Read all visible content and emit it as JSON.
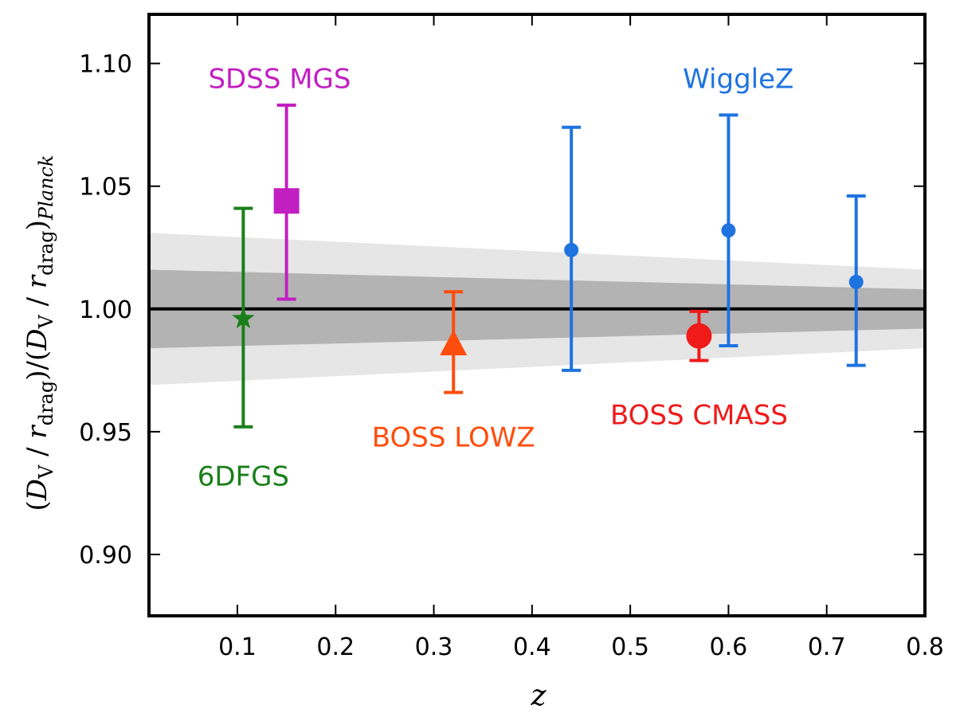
{
  "chart_data": {
    "type": "scatter",
    "xlabel": "z",
    "ylabel": {
      "open": "(",
      "D": "D",
      "V": "V",
      "slash": " / ",
      "r": "r",
      "drag": "drag",
      "mid": ")/(",
      "close": ")",
      "planck": "Planck"
    },
    "xlim": [
      0.01,
      0.8
    ],
    "ylim": [
      0.875,
      1.12
    ],
    "xticks": [
      0.1,
      0.2,
      0.3,
      0.4,
      0.5,
      0.6,
      0.7,
      0.8
    ],
    "xtick_labels": [
      "0.1",
      "0.2",
      "0.3",
      "0.4",
      "0.5",
      "0.6",
      "0.7",
      "0.8"
    ],
    "yticks": [
      0.9,
      0.95,
      1.0,
      1.05,
      1.1
    ],
    "ytick_labels": [
      "0.90",
      "0.95",
      "1.00",
      "1.05",
      "1.10"
    ],
    "reference_line": 1.0,
    "bands": {
      "outer": {
        "z": [
          0.01,
          0.8
        ],
        "lower": [
          0.969,
          0.984
        ],
        "upper": [
          1.031,
          1.016
        ]
      },
      "inner": {
        "z": [
          0.01,
          0.8
        ],
        "lower": [
          0.984,
          0.992
        ],
        "upper": [
          1.016,
          1.008
        ]
      }
    },
    "series": [
      {
        "name": "6DFGS",
        "color": "#1a7f1a",
        "marker": "star",
        "points": [
          {
            "x": 0.106,
            "y": 0.996,
            "yerr_low": 0.044,
            "yerr_high": 0.045
          }
        ]
      },
      {
        "name": "SDSS MGS",
        "color": "#c21fc2",
        "marker": "square",
        "points": [
          {
            "x": 0.15,
            "y": 1.044,
            "yerr_low": 0.04,
            "yerr_high": 0.039
          }
        ]
      },
      {
        "name": "BOSS LOWZ",
        "color": "#ff4d0d",
        "marker": "triangle",
        "points": [
          {
            "x": 0.32,
            "y": 0.985,
            "yerr_low": 0.019,
            "yerr_high": 0.022
          }
        ]
      },
      {
        "name": "BOSS CMASS",
        "color": "#f01a1a",
        "marker": "circle-large",
        "points": [
          {
            "x": 0.57,
            "y": 0.989,
            "yerr_low": 0.01,
            "yerr_high": 0.01
          }
        ]
      },
      {
        "name": "WiggleZ",
        "color": "#1f73e0",
        "marker": "circle",
        "points": [
          {
            "x": 0.44,
            "y": 1.024,
            "yerr_low": 0.049,
            "yerr_high": 0.05
          },
          {
            "x": 0.6,
            "y": 1.032,
            "yerr_low": 0.047,
            "yerr_high": 0.047
          },
          {
            "x": 0.73,
            "y": 1.011,
            "yerr_low": 0.034,
            "yerr_high": 0.035
          }
        ]
      }
    ],
    "annotations": [
      {
        "text": "SDSS MGS",
        "series": "SDSS MGS",
        "x": 0.143,
        "y": 1.09
      },
      {
        "text": "WiggleZ",
        "series": "WiggleZ",
        "x": 0.61,
        "y": 1.09
      },
      {
        "text": "BOSS LOWZ",
        "series": "BOSS LOWZ",
        "x": 0.32,
        "y": 0.944
      },
      {
        "text": "BOSS CMASS",
        "series": "BOSS CMASS",
        "x": 0.57,
        "y": 0.953
      },
      {
        "text": "6DFGS",
        "series": "6DFGS",
        "x": 0.106,
        "y": 0.928
      }
    ]
  }
}
